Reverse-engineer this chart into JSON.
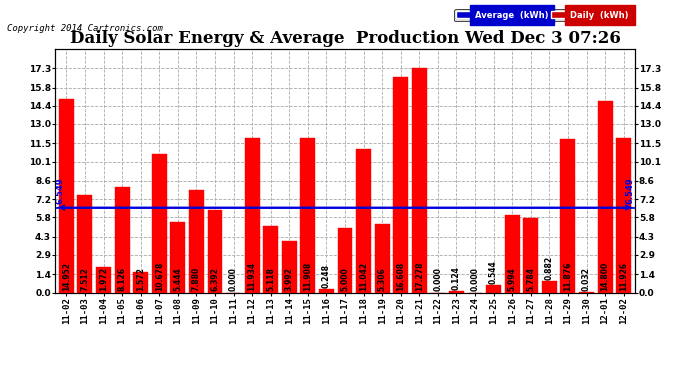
{
  "title": "Daily Solar Energy & Average  Production Wed Dec 3 07:26",
  "copyright": "Copyright 2014 Cartronics.com",
  "categories": [
    "11-02",
    "11-03",
    "11-04",
    "11-05",
    "11-06",
    "11-07",
    "11-08",
    "11-09",
    "11-10",
    "11-11",
    "11-12",
    "11-13",
    "11-14",
    "11-15",
    "11-16",
    "11-17",
    "11-18",
    "11-19",
    "11-20",
    "11-21",
    "11-22",
    "11-23",
    "11-24",
    "11-25",
    "11-26",
    "11-27",
    "11-28",
    "11-29",
    "11-30",
    "12-01",
    "12-02"
  ],
  "values": [
    14.952,
    7.512,
    1.972,
    8.126,
    1.572,
    10.678,
    5.444,
    7.88,
    6.392,
    0.0,
    11.934,
    5.118,
    3.992,
    11.908,
    0.248,
    5.0,
    11.042,
    5.306,
    16.608,
    17.278,
    0.0,
    0.124,
    0.0,
    0.544,
    5.994,
    5.784,
    0.882,
    11.876,
    0.032,
    14.8,
    11.926
  ],
  "average": 6.549,
  "bar_color": "#ff0000",
  "average_line_color": "#0000dd",
  "background_color": "#ffffff",
  "grid_color": "#aaaaaa",
  "ylim": [
    0.0,
    18.8
  ],
  "yticks": [
    0.0,
    1.4,
    2.9,
    4.3,
    5.8,
    7.2,
    8.6,
    10.1,
    11.5,
    13.0,
    14.4,
    15.8,
    17.3
  ],
  "bar_edge_color": "#dd0000",
  "legend_avg_bg": "#0000cc",
  "legend_daily_bg": "#cc0000",
  "legend_text_color": "#ffffff",
  "title_fontsize": 12,
  "axis_label_fontsize": 6.5,
  "value_fontsize": 5.5,
  "copyright_fontsize": 6.5
}
